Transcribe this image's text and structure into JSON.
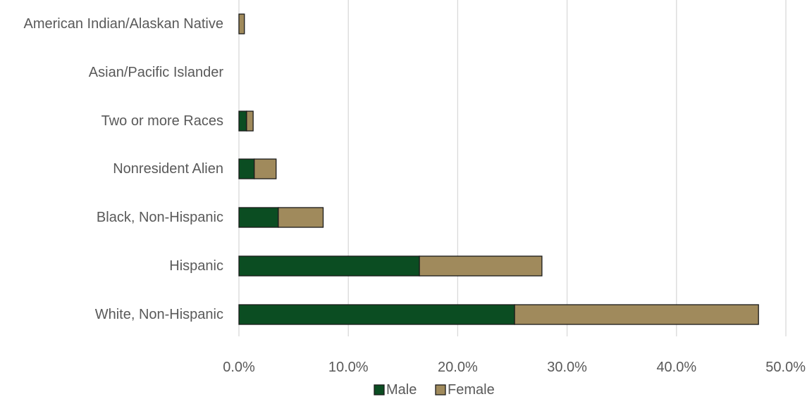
{
  "chart_data": {
    "type": "bar",
    "orientation": "horizontal",
    "stacked": true,
    "title": "",
    "xlabel": "",
    "ylabel": "",
    "categories": [
      "American Indian/Alaskan Native",
      "Asian/Pacific Islander",
      "Two or more Races",
      "Nonresident Alien",
      "Black, Non-Hispanic",
      "Hispanic",
      "White, Non-Hispanic"
    ],
    "series": [
      {
        "name": "Male",
        "color": "#0b4d22",
        "values": [
          0.0,
          0.0,
          0.7,
          1.4,
          3.6,
          16.5,
          25.2
        ]
      },
      {
        "name": "Female",
        "color": "#a08a5c",
        "values": [
          0.5,
          0.0,
          0.6,
          2.0,
          4.1,
          11.2,
          22.3
        ]
      }
    ],
    "xlim": [
      0,
      50
    ],
    "x_ticks": [
      "0.0%",
      "10.0%",
      "20.0%",
      "30.0%",
      "40.0%",
      "50.0%"
    ],
    "x_tick_values": [
      0,
      10,
      20,
      30,
      40,
      50
    ],
    "grid": true,
    "legend_position": "bottom"
  }
}
